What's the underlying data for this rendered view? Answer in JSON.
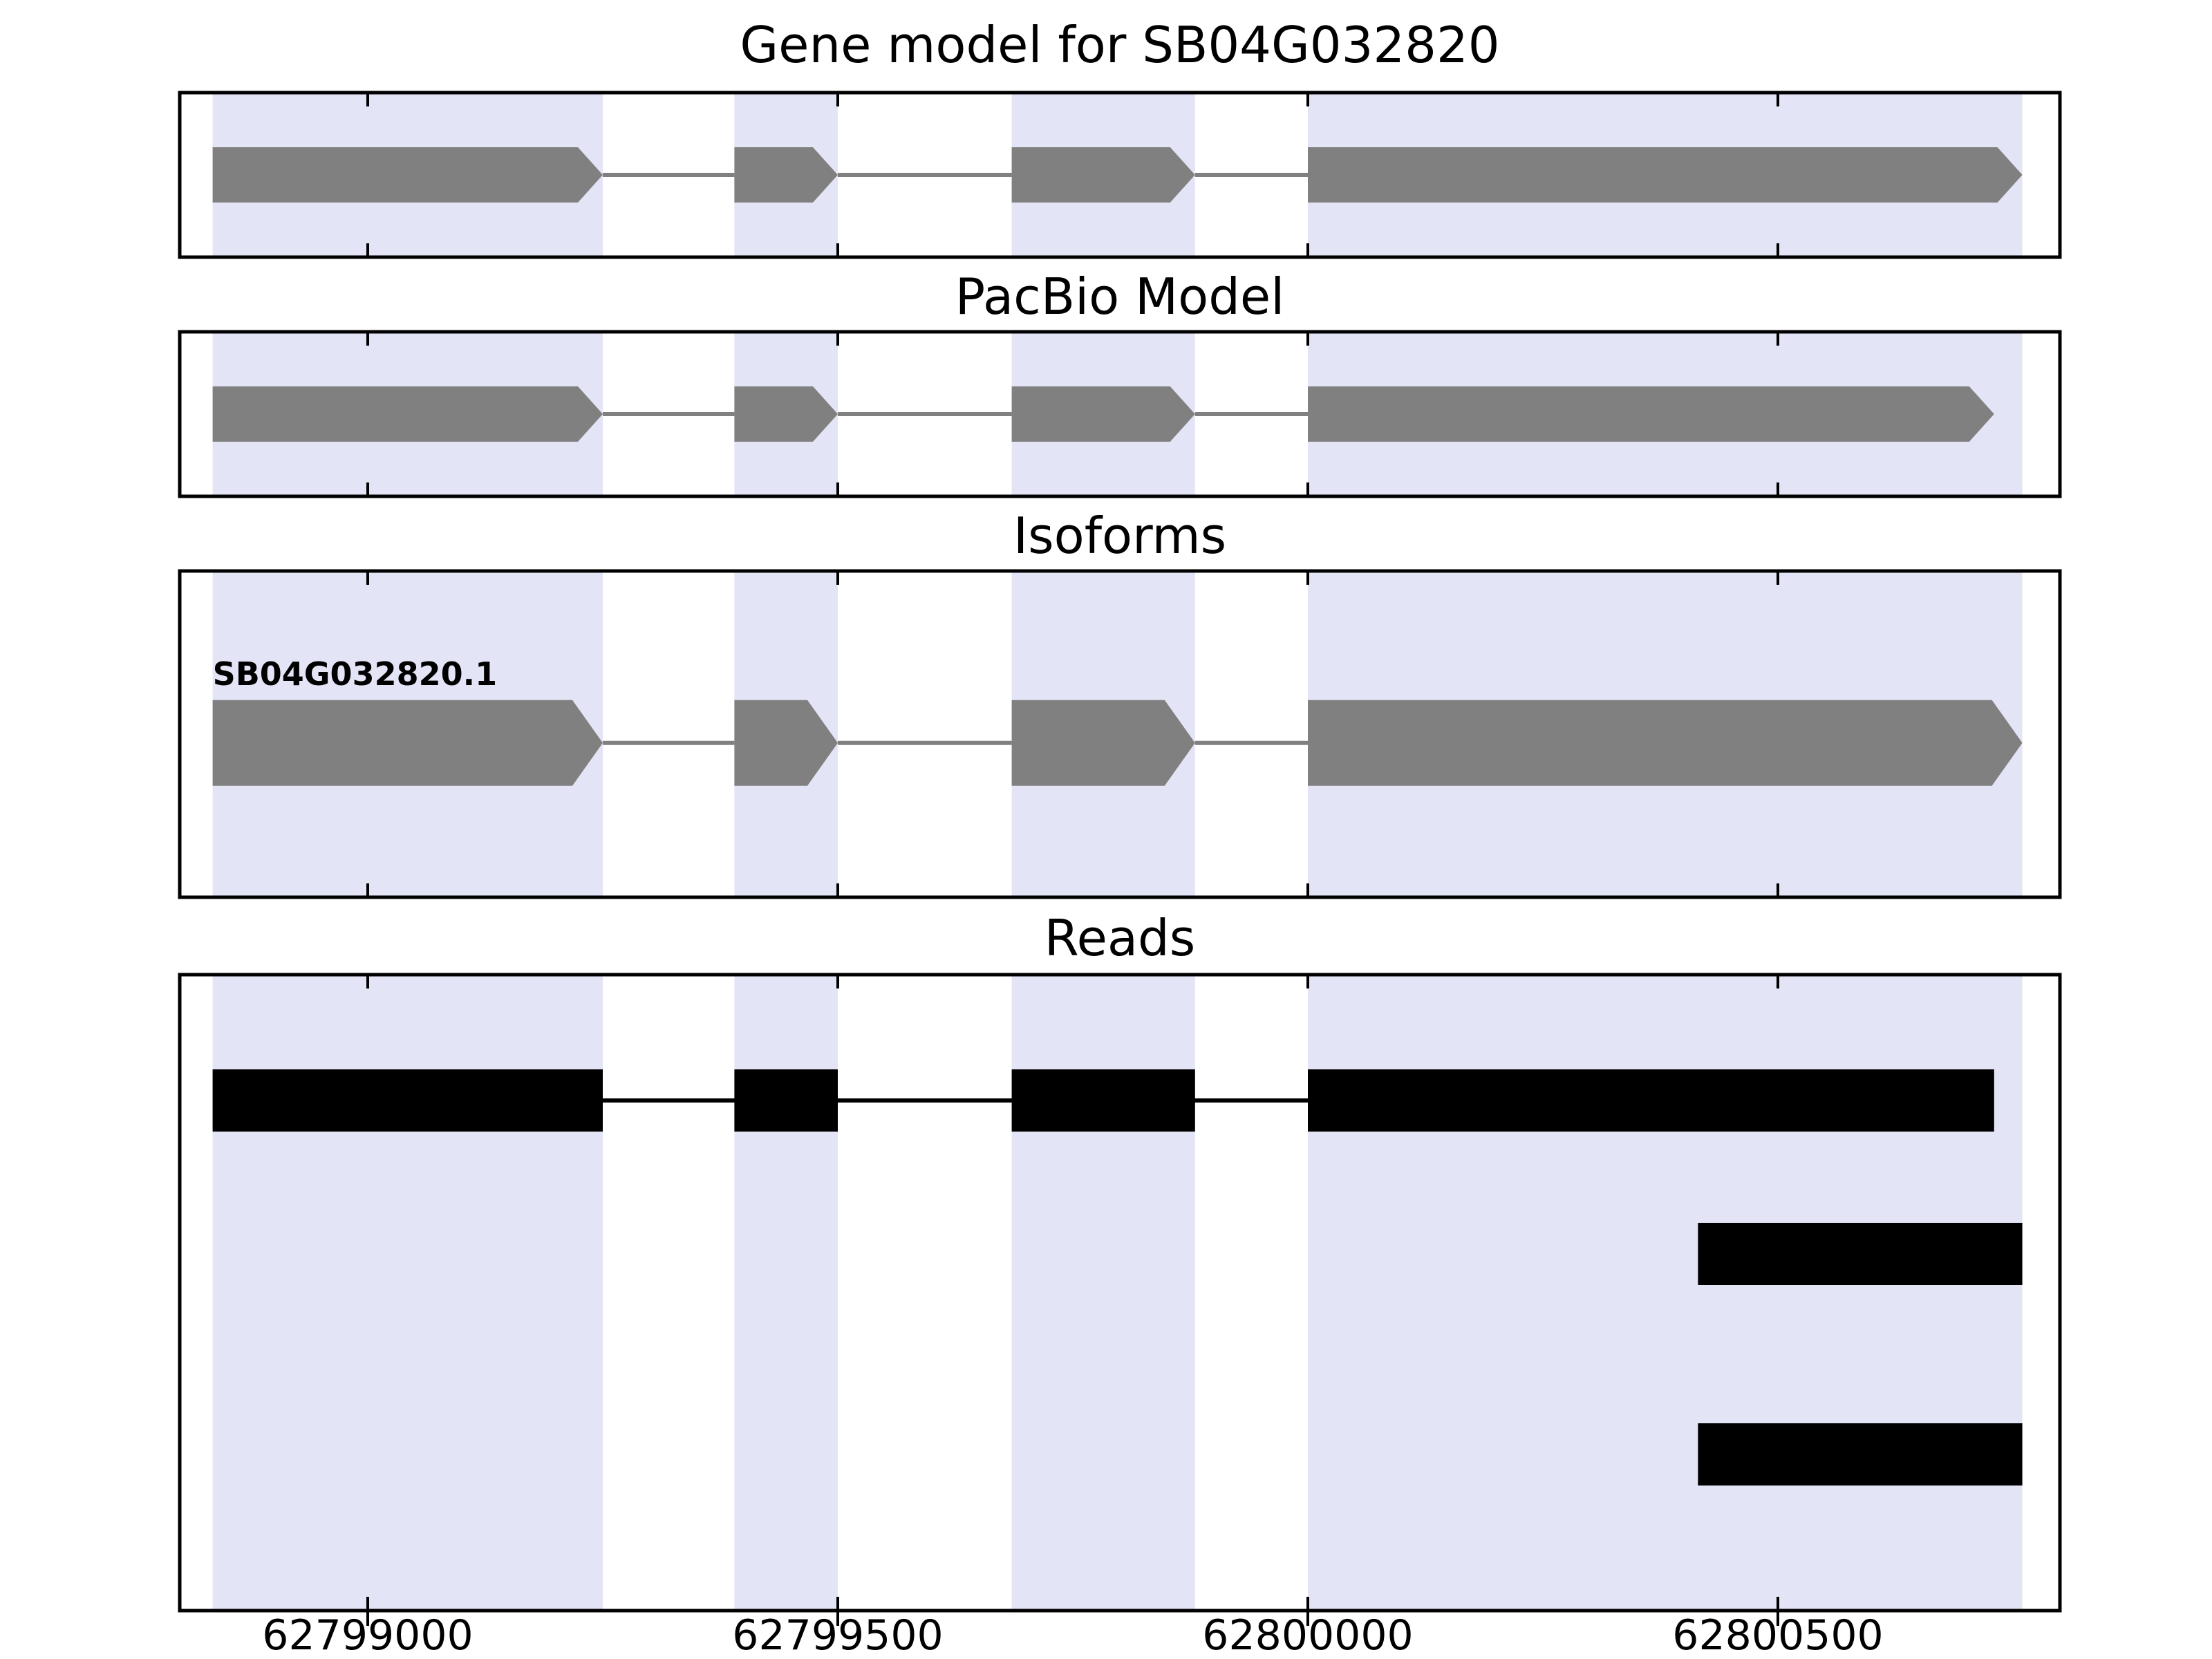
{
  "figure": {
    "background": "#ffffff",
    "colors": {
      "exon": "#808080",
      "intron_line": "#808080",
      "highlight": "#e4e4f7",
      "read": "#000000",
      "axis": "#000000"
    }
  },
  "chart_data": {
    "type": "gene-model-tracks",
    "genome_range": [
      62798800,
      62800800
    ],
    "x_ticks": [
      62799000,
      62799500,
      62800000,
      62800500
    ],
    "highlight_regions": [
      [
        62798835,
        62799250
      ],
      [
        62799390,
        62799500
      ],
      [
        62799685,
        62799880
      ],
      [
        62800000,
        62800760
      ]
    ],
    "panels": [
      {
        "id": "gene-model",
        "title": "Gene model for SB04G032820",
        "kind": "model",
        "strand": "+",
        "exons": [
          [
            62798835,
            62799250
          ],
          [
            62799390,
            62799500
          ],
          [
            62799685,
            62799880
          ],
          [
            62800000,
            62800760
          ]
        ]
      },
      {
        "id": "pacbio-model",
        "title": "PacBio Model",
        "kind": "model",
        "strand": "+",
        "exons": [
          [
            62798835,
            62799250
          ],
          [
            62799390,
            62799500
          ],
          [
            62799685,
            62799880
          ],
          [
            62800000,
            62800730
          ]
        ]
      },
      {
        "id": "isoforms",
        "title": "Isoforms",
        "kind": "isoforms",
        "isoforms": [
          {
            "label": "SB04G032820.1",
            "strand": "+",
            "exons": [
              [
                62798835,
                62799250
              ],
              [
                62799390,
                62799500
              ],
              [
                62799685,
                62799880
              ],
              [
                62800000,
                62800760
              ]
            ]
          }
        ]
      },
      {
        "id": "reads",
        "title": "Reads",
        "kind": "reads",
        "reads": [
          {
            "blocks": [
              [
                62798835,
                62799250
              ],
              [
                62799390,
                62799500
              ],
              [
                62799685,
                62799880
              ],
              [
                62800000,
                62800730
              ]
            ]
          },
          {
            "blocks": [
              [
                62800415,
                62800760
              ]
            ]
          },
          {
            "blocks": [
              [
                62800415,
                62800760
              ]
            ]
          }
        ]
      }
    ]
  }
}
